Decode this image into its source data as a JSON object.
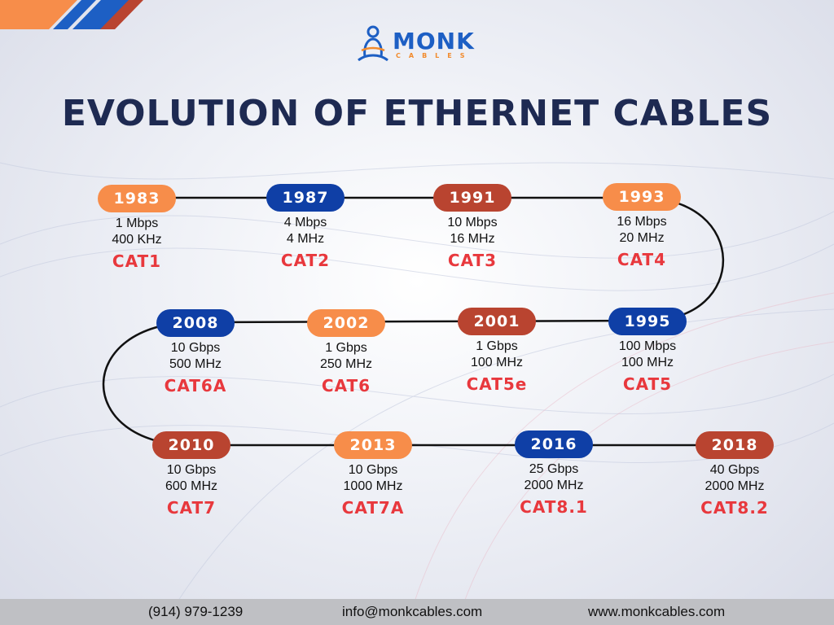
{
  "brand": {
    "name": "MONK",
    "tagline": "CABLES",
    "colors": {
      "primary": "#1d5fc4",
      "accent": "#f28b2d"
    }
  },
  "title": "EVOLUTION OF ETHERNET CABLES",
  "colors": {
    "orange": "#f78d4a",
    "blue": "#0f3fa6",
    "red": "#b94430",
    "cat_text": "#e8383d",
    "title": "#1e2a52"
  },
  "timeline": [
    {
      "year": "1983",
      "speed": "1 Mbps",
      "frequency": "400 KHz",
      "category": "CAT1",
      "color": "orange"
    },
    {
      "year": "1987",
      "speed": "4 Mbps",
      "frequency": "4 MHz",
      "category": "CAT2",
      "color": "blue"
    },
    {
      "year": "1991",
      "speed": "10 Mbps",
      "frequency": "16 MHz",
      "category": "CAT3",
      "color": "red"
    },
    {
      "year": "1993",
      "speed": "16 Mbps",
      "frequency": "20 MHz",
      "category": "CAT4",
      "color": "orange"
    },
    {
      "year": "1995",
      "speed": "100 Mbps",
      "frequency": "100 MHz",
      "category": "CAT5",
      "color": "blue"
    },
    {
      "year": "2001",
      "speed": "1 Gbps",
      "frequency": "100 MHz",
      "category": "CAT5e",
      "color": "red"
    },
    {
      "year": "2002",
      "speed": "1 Gbps",
      "frequency": "250 MHz",
      "category": "CAT6",
      "color": "orange"
    },
    {
      "year": "2008",
      "speed": "10 Gbps",
      "frequency": "500 MHz",
      "category": "CAT6A",
      "color": "blue"
    },
    {
      "year": "2010",
      "speed": "10 Gbps",
      "frequency": "600 MHz",
      "category": "CAT7",
      "color": "red"
    },
    {
      "year": "2013",
      "speed": "10 Gbps",
      "frequency": "1000 MHz",
      "category": "CAT7A",
      "color": "orange"
    },
    {
      "year": "2016",
      "speed": "25 Gbps",
      "frequency": "2000 MHz",
      "category": "CAT8.1",
      "color": "blue"
    },
    {
      "year": "2018",
      "speed": "40 Gbps",
      "frequency": "2000 MHz",
      "category": "CAT8.2",
      "color": "red"
    }
  ],
  "footer": {
    "phone": "(914) 979-1239",
    "email": "info@monkcables.com",
    "website": "www.monkcables.com"
  }
}
